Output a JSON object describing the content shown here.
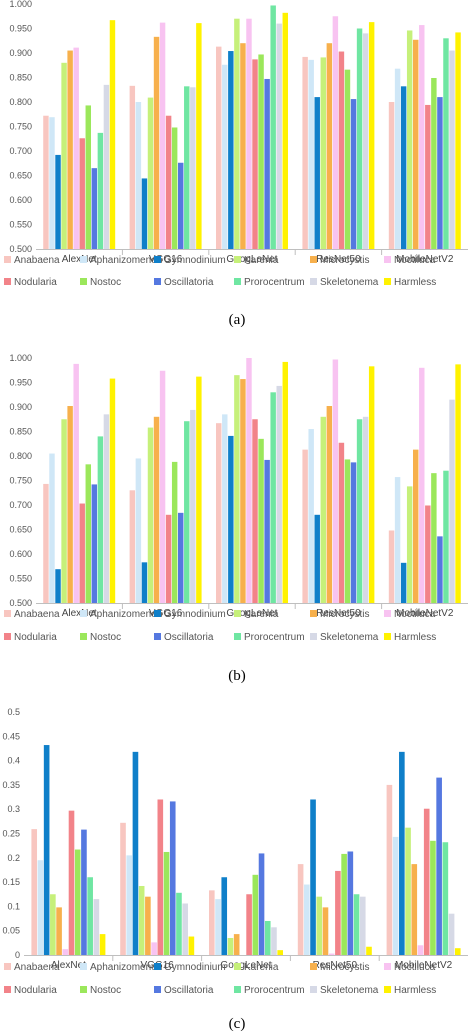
{
  "categories": [
    "AlexNet",
    "VGG16",
    "GoogLeNet",
    "ResNet50",
    "MobileNetV2"
  ],
  "legend": [
    "Anabaena",
    "Aphanizomenon",
    "Gymnodinium",
    "Karenia",
    "Microcystis",
    "Noctiluca",
    "Nodularia",
    "Nostoc",
    "Oscillatoria",
    "Prorocentrum",
    "Skeletonema",
    "Harmless"
  ],
  "colors": [
    "#f8c6c0",
    "#cfe7f7",
    "#0f7fc9",
    "#c6f07a",
    "#f7b04c",
    "#f8c3f1",
    "#f28389",
    "#9be75b",
    "#5578e0",
    "#6fe6a2",
    "#d6d9e6",
    "#fff200"
  ],
  "chart_data": [
    {
      "type": "bar",
      "panel_label": "(a)",
      "categories": [
        "AlexNet",
        "VGG16",
        "GoogLeNet",
        "ResNet50",
        "MobileNetV2"
      ],
      "ylim": [
        0.5,
        1.0
      ],
      "yticks": [
        "0.500",
        "0.550",
        "0.600",
        "0.650",
        "0.700",
        "0.750",
        "0.800",
        "0.850",
        "0.900",
        "0.950",
        "1.000"
      ],
      "grid": false,
      "legend_position": "bottom",
      "series": [
        {
          "name": "Anabaena",
          "values": [
            0.772,
            0.833,
            0.913,
            0.892,
            0.8
          ]
        },
        {
          "name": "Aphanizomenon",
          "values": [
            0.769,
            0.8,
            0.876,
            0.886,
            0.868
          ]
        },
        {
          "name": "Gymnodinium",
          "values": [
            0.692,
            0.644,
            0.904,
            0.81,
            0.832
          ]
        },
        {
          "name": "Karenia",
          "values": [
            0.88,
            0.809,
            0.97,
            0.891,
            0.946
          ]
        },
        {
          "name": "Microcystis",
          "values": [
            0.905,
            0.933,
            0.92,
            0.92,
            0.927
          ]
        },
        {
          "name": "Noctiluca",
          "values": [
            0.911,
            0.962,
            0.97,
            0.975,
            0.957
          ]
        },
        {
          "name": "Nodularia",
          "values": [
            0.726,
            0.772,
            0.887,
            0.903,
            0.794
          ]
        },
        {
          "name": "Nostoc",
          "values": [
            0.793,
            0.748,
            0.897,
            0.866,
            0.849
          ]
        },
        {
          "name": "Oscillatoria",
          "values": [
            0.665,
            0.676,
            0.847,
            0.806,
            0.81
          ]
        },
        {
          "name": "Prorocentrum",
          "values": [
            0.737,
            0.832,
            0.997,
            0.95,
            0.93
          ]
        },
        {
          "name": "Skeletonema",
          "values": [
            0.835,
            0.83,
            0.96,
            0.94,
            0.905
          ]
        },
        {
          "name": "Harmless",
          "values": [
            0.967,
            0.961,
            0.982,
            0.963,
            0.942
          ]
        }
      ]
    },
    {
      "type": "bar",
      "panel_label": "(b)",
      "categories": [
        "AlexNet",
        "VGG16",
        "GoogLeNet",
        "ResNet50",
        "MobileNetV2"
      ],
      "ylim": [
        0.5,
        1.0
      ],
      "yticks": [
        "0.500",
        "0.550",
        "0.600",
        "0.650",
        "0.700",
        "0.750",
        "0.800",
        "0.850",
        "0.900",
        "0.950",
        "1.000"
      ],
      "grid": false,
      "legend_position": "bottom",
      "series": [
        {
          "name": "Anabaena",
          "values": [
            0.743,
            0.73,
            0.867,
            0.813,
            0.648
          ]
        },
        {
          "name": "Aphanizomenon",
          "values": [
            0.805,
            0.795,
            0.885,
            0.855,
            0.757
          ]
        },
        {
          "name": "Gymnodinium",
          "values": [
            0.569,
            0.583,
            0.841,
            0.68,
            0.582
          ]
        },
        {
          "name": "Karenia",
          "values": [
            0.875,
            0.858,
            0.965,
            0.88,
            0.738
          ]
        },
        {
          "name": "Microcystis",
          "values": [
            0.902,
            0.88,
            0.957,
            0.902,
            0.813
          ]
        },
        {
          "name": "Noctiluca",
          "values": [
            0.988,
            0.974,
            1.0,
            0.997,
            0.98
          ]
        },
        {
          "name": "Nodularia",
          "values": [
            0.703,
            0.68,
            0.875,
            0.827,
            0.699
          ]
        },
        {
          "name": "Nostoc",
          "values": [
            0.783,
            0.788,
            0.835,
            0.793,
            0.765
          ]
        },
        {
          "name": "Oscillatoria",
          "values": [
            0.742,
            0.684,
            0.792,
            0.787,
            0.636
          ]
        },
        {
          "name": "Prorocentrum",
          "values": [
            0.84,
            0.871,
            0.93,
            0.875,
            0.77
          ]
        },
        {
          "name": "Skeletonema",
          "values": [
            0.885,
            0.894,
            0.943,
            0.88,
            0.915
          ]
        },
        {
          "name": "Harmless",
          "values": [
            0.958,
            0.962,
            0.992,
            0.983,
            0.987
          ]
        }
      ]
    },
    {
      "type": "bar",
      "panel_label": "(c)",
      "categories": [
        "AlexNet",
        "VGG16",
        "GoogLeNet",
        "ResNet50",
        "MobileNetV2"
      ],
      "ylim": [
        0,
        0.5
      ],
      "yticks": [
        "0",
        "0.05",
        "0.1",
        "0.15",
        "0.2",
        "0.25",
        "0.3",
        "0.35",
        "0.4",
        "0.45",
        "0.5"
      ],
      "grid": false,
      "legend_position": "bottom",
      "series": [
        {
          "name": "Anabaena",
          "values": [
            0.259,
            0.272,
            0.133,
            0.187,
            0.35
          ]
        },
        {
          "name": "Aphanizomenon",
          "values": [
            0.195,
            0.205,
            0.115,
            0.145,
            0.243
          ]
        },
        {
          "name": "Gymnodinium",
          "values": [
            0.432,
            0.418,
            0.16,
            0.32,
            0.418
          ]
        },
        {
          "name": "Karenia",
          "values": [
            0.125,
            0.142,
            0.035,
            0.12,
            0.262
          ]
        },
        {
          "name": "Microcystis",
          "values": [
            0.098,
            0.12,
            0.043,
            0.098,
            0.187
          ]
        },
        {
          "name": "Noctiluca",
          "values": [
            0.012,
            0.026,
            0.0,
            0.003,
            0.02
          ]
        },
        {
          "name": "Nodularia",
          "values": [
            0.297,
            0.32,
            0.125,
            0.173,
            0.301
          ]
        },
        {
          "name": "Nostoc",
          "values": [
            0.217,
            0.212,
            0.165,
            0.208,
            0.235
          ]
        },
        {
          "name": "Oscillatoria",
          "values": [
            0.258,
            0.316,
            0.209,
            0.213,
            0.365
          ]
        },
        {
          "name": "Prorocentrum",
          "values": [
            0.16,
            0.128,
            0.07,
            0.125,
            0.232
          ]
        },
        {
          "name": "Skeletonema",
          "values": [
            0.115,
            0.106,
            0.057,
            0.12,
            0.085
          ]
        },
        {
          "name": "Harmless",
          "values": [
            0.043,
            0.038,
            0.01,
            0.017,
            0.014
          ]
        }
      ]
    }
  ]
}
